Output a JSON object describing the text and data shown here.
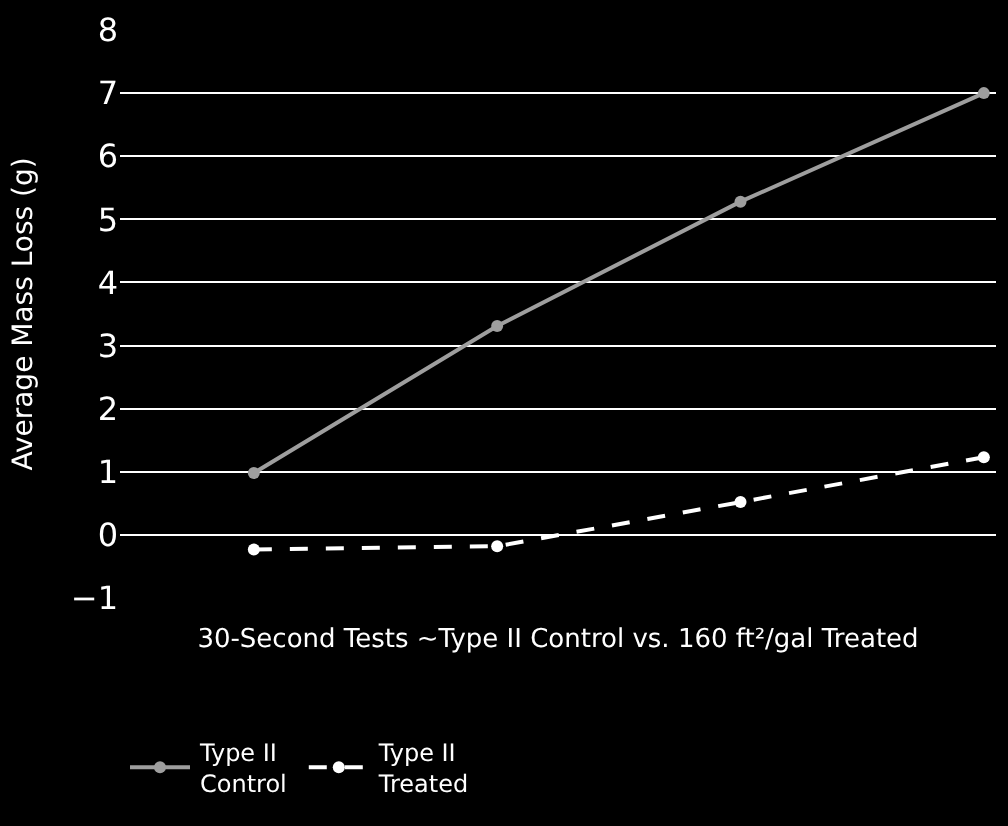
{
  "chart_data": {
    "type": "line",
    "xlabel": "30-Second Tests ~Type II Control vs. 160 ft²/gal Treated",
    "ylabel": "Average Mass Loss (g)",
    "categories": [
      null,
      null,
      null,
      null
    ],
    "series": [
      {
        "name": "Type II Control",
        "color": "#9e9e9e",
        "values": [
          0.98,
          3.31,
          5.28,
          7.0
        ],
        "line_style": "solid"
      },
      {
        "name": "Type II Treated",
        "color": "#ffffff",
        "values": [
          -0.23,
          -0.18,
          0.52,
          1.23
        ],
        "line_style": "dashed"
      }
    ],
    "ylim": [
      -1,
      8
    ],
    "yticks": [
      -1,
      0,
      1,
      2,
      3,
      4,
      5,
      6,
      7,
      8
    ],
    "grid": "y",
    "legend": "bottom",
    "marker": "circle"
  }
}
